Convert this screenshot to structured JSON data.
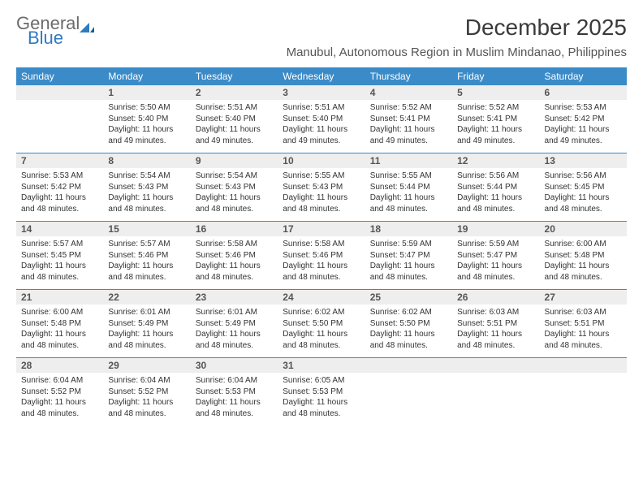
{
  "brand": {
    "part1": "General",
    "part2": "Blue",
    "color1": "#6b6b6b",
    "color2": "#2f7bbf"
  },
  "header": {
    "month_title": "December 2025",
    "location": "Manubul, Autonomous Region in Muslim Mindanao, Philippines"
  },
  "calendar": {
    "day_header_bg": "#3b8bc9",
    "day_header_fg": "#ffffff",
    "daynum_bg": "#eeeeee",
    "week_divider": "#3b8bc9",
    "days_of_week": [
      "Sunday",
      "Monday",
      "Tuesday",
      "Wednesday",
      "Thursday",
      "Friday",
      "Saturday"
    ],
    "weeks": [
      [
        null,
        {
          "n": "1",
          "sunrise": "5:50 AM",
          "sunset": "5:40 PM",
          "daylight": "11 hours and 49 minutes."
        },
        {
          "n": "2",
          "sunrise": "5:51 AM",
          "sunset": "5:40 PM",
          "daylight": "11 hours and 49 minutes."
        },
        {
          "n": "3",
          "sunrise": "5:51 AM",
          "sunset": "5:40 PM",
          "daylight": "11 hours and 49 minutes."
        },
        {
          "n": "4",
          "sunrise": "5:52 AM",
          "sunset": "5:41 PM",
          "daylight": "11 hours and 49 minutes."
        },
        {
          "n": "5",
          "sunrise": "5:52 AM",
          "sunset": "5:41 PM",
          "daylight": "11 hours and 49 minutes."
        },
        {
          "n": "6",
          "sunrise": "5:53 AM",
          "sunset": "5:42 PM",
          "daylight": "11 hours and 49 minutes."
        }
      ],
      [
        {
          "n": "7",
          "sunrise": "5:53 AM",
          "sunset": "5:42 PM",
          "daylight": "11 hours and 48 minutes."
        },
        {
          "n": "8",
          "sunrise": "5:54 AM",
          "sunset": "5:43 PM",
          "daylight": "11 hours and 48 minutes."
        },
        {
          "n": "9",
          "sunrise": "5:54 AM",
          "sunset": "5:43 PM",
          "daylight": "11 hours and 48 minutes."
        },
        {
          "n": "10",
          "sunrise": "5:55 AM",
          "sunset": "5:43 PM",
          "daylight": "11 hours and 48 minutes."
        },
        {
          "n": "11",
          "sunrise": "5:55 AM",
          "sunset": "5:44 PM",
          "daylight": "11 hours and 48 minutes."
        },
        {
          "n": "12",
          "sunrise": "5:56 AM",
          "sunset": "5:44 PM",
          "daylight": "11 hours and 48 minutes."
        },
        {
          "n": "13",
          "sunrise": "5:56 AM",
          "sunset": "5:45 PM",
          "daylight": "11 hours and 48 minutes."
        }
      ],
      [
        {
          "n": "14",
          "sunrise": "5:57 AM",
          "sunset": "5:45 PM",
          "daylight": "11 hours and 48 minutes."
        },
        {
          "n": "15",
          "sunrise": "5:57 AM",
          "sunset": "5:46 PM",
          "daylight": "11 hours and 48 minutes."
        },
        {
          "n": "16",
          "sunrise": "5:58 AM",
          "sunset": "5:46 PM",
          "daylight": "11 hours and 48 minutes."
        },
        {
          "n": "17",
          "sunrise": "5:58 AM",
          "sunset": "5:46 PM",
          "daylight": "11 hours and 48 minutes."
        },
        {
          "n": "18",
          "sunrise": "5:59 AM",
          "sunset": "5:47 PM",
          "daylight": "11 hours and 48 minutes."
        },
        {
          "n": "19",
          "sunrise": "5:59 AM",
          "sunset": "5:47 PM",
          "daylight": "11 hours and 48 minutes."
        },
        {
          "n": "20",
          "sunrise": "6:00 AM",
          "sunset": "5:48 PM",
          "daylight": "11 hours and 48 minutes."
        }
      ],
      [
        {
          "n": "21",
          "sunrise": "6:00 AM",
          "sunset": "5:48 PM",
          "daylight": "11 hours and 48 minutes."
        },
        {
          "n": "22",
          "sunrise": "6:01 AM",
          "sunset": "5:49 PM",
          "daylight": "11 hours and 48 minutes."
        },
        {
          "n": "23",
          "sunrise": "6:01 AM",
          "sunset": "5:49 PM",
          "daylight": "11 hours and 48 minutes."
        },
        {
          "n": "24",
          "sunrise": "6:02 AM",
          "sunset": "5:50 PM",
          "daylight": "11 hours and 48 minutes."
        },
        {
          "n": "25",
          "sunrise": "6:02 AM",
          "sunset": "5:50 PM",
          "daylight": "11 hours and 48 minutes."
        },
        {
          "n": "26",
          "sunrise": "6:03 AM",
          "sunset": "5:51 PM",
          "daylight": "11 hours and 48 minutes."
        },
        {
          "n": "27",
          "sunrise": "6:03 AM",
          "sunset": "5:51 PM",
          "daylight": "11 hours and 48 minutes."
        }
      ],
      [
        {
          "n": "28",
          "sunrise": "6:04 AM",
          "sunset": "5:52 PM",
          "daylight": "11 hours and 48 minutes."
        },
        {
          "n": "29",
          "sunrise": "6:04 AM",
          "sunset": "5:52 PM",
          "daylight": "11 hours and 48 minutes."
        },
        {
          "n": "30",
          "sunrise": "6:04 AM",
          "sunset": "5:53 PM",
          "daylight": "11 hours and 48 minutes."
        },
        {
          "n": "31",
          "sunrise": "6:05 AM",
          "sunset": "5:53 PM",
          "daylight": "11 hours and 48 minutes."
        },
        null,
        null,
        null
      ]
    ],
    "labels": {
      "sunrise": "Sunrise:",
      "sunset": "Sunset:",
      "daylight": "Daylight:"
    }
  }
}
